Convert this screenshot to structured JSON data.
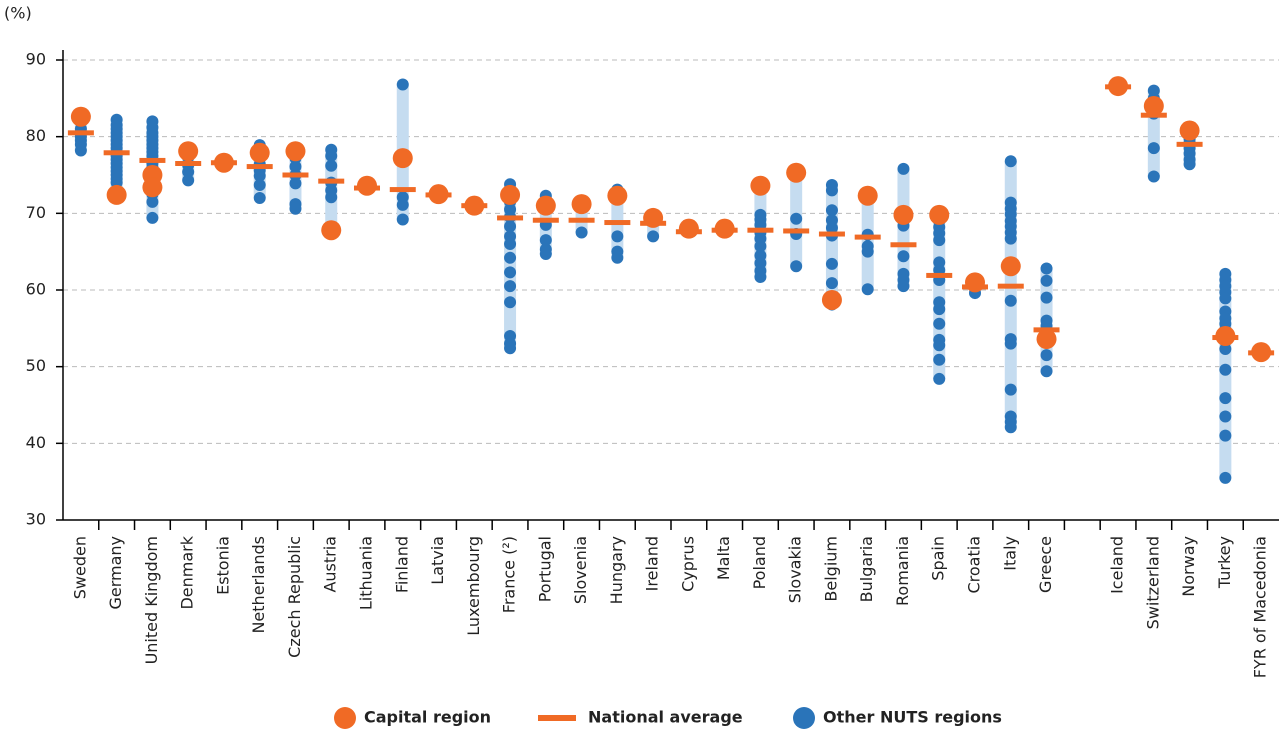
{
  "chart_data": {
    "type": "dot",
    "unit_label": "(%)",
    "categories": [
      "Sweden",
      "Germany",
      "United Kingdom",
      "Denmark",
      "Estonia",
      "Netherlands",
      "Czech Republic",
      "Austria",
      "Lithuania",
      "Finland",
      "Latvia",
      "Luxembourg",
      "France (²)",
      "Portugal",
      "Slovenia",
      "Hungary",
      "Ireland",
      "Cyprus",
      "Malta",
      "Poland",
      "Slovakia",
      "Belgium",
      "Bulgaria",
      "Romania",
      "Spain",
      "Croatia",
      "Italy",
      "Greece",
      null,
      "Iceland",
      "Switzerland",
      "Norway",
      "Turkey",
      "FYR of Macedonia"
    ],
    "series": [
      {
        "name": "Capital region",
        "color": "#f06a25",
        "values": [
          [
            82.6
          ],
          [
            72.4
          ],
          [
            75.0,
            73.4
          ],
          [
            78.1
          ],
          [
            76.6
          ],
          [
            77.9
          ],
          [
            78.1
          ],
          [
            67.8
          ],
          [
            73.6
          ],
          [
            77.2
          ],
          [
            72.5
          ],
          [
            71.0
          ],
          [
            72.4
          ],
          [
            71.0
          ],
          [
            71.2
          ],
          [
            72.3
          ],
          [
            69.4
          ],
          [
            68.0
          ],
          [
            68.0
          ],
          [
            73.6
          ],
          [
            75.3
          ],
          [
            58.7
          ],
          [
            72.3
          ],
          [
            69.8
          ],
          [
            69.8
          ],
          [
            61.0
          ],
          [
            63.1
          ],
          [
            53.6
          ],
          null,
          [
            86.6
          ],
          [
            84.0
          ],
          [
            80.8
          ],
          [
            54.0
          ],
          [
            51.9
          ]
        ]
      },
      {
        "name": "National average",
        "color": "#f06a25",
        "values": [
          80.5,
          77.9,
          76.9,
          76.5,
          76.6,
          76.1,
          75.0,
          74.2,
          73.3,
          73.1,
          72.4,
          71.0,
          69.4,
          69.1,
          69.1,
          68.8,
          68.7,
          67.6,
          67.8,
          67.8,
          67.7,
          67.3,
          66.9,
          65.9,
          61.9,
          60.4,
          60.5,
          54.8,
          null,
          86.5,
          82.8,
          79.0,
          53.8,
          51.8
        ]
      },
      {
        "name": "Other NUTS regions",
        "color": "#2a74b9",
        "values": [
          [
            82.0,
            81.0,
            80.0,
            79.5,
            79.0,
            78.2
          ],
          [
            82.2,
            81.5,
            81.0,
            80.5,
            80.0,
            79.5,
            79.0,
            78.5,
            78.0,
            77.5,
            77.0,
            76.5,
            76.0,
            75.5,
            75.0,
            74.5,
            74.0,
            73.0,
            72.2
          ],
          [
            82.0,
            81.2,
            80.5,
            80.0,
            79.5,
            79.0,
            78.5,
            78.0,
            77.5,
            77.0,
            76.5,
            76.0,
            75.5,
            74.5,
            72.5,
            71.5,
            69.4
          ],
          [
            77.3,
            76.3,
            75.4,
            74.3
          ],
          [],
          [
            78.9,
            78.1,
            77.2,
            76.4,
            75.6,
            74.9,
            73.7,
            72.0
          ],
          [
            77.2,
            76.1,
            75.0,
            73.9,
            71.2,
            70.6
          ],
          [
            78.3,
            77.5,
            76.2,
            74.0,
            73.0,
            72.1
          ],
          [],
          [
            86.8,
            72.1,
            71.1,
            69.2
          ],
          [],
          [],
          [
            73.8,
            73.1,
            72.4,
            71.5,
            70.5,
            69.5,
            68.3,
            67.0,
            66.0,
            64.2,
            62.3,
            60.5,
            58.4,
            54.0,
            53.0,
            52.4
          ],
          [
            72.3,
            71.3,
            68.5,
            66.5,
            65.3,
            64.7
          ],
          [
            67.5
          ],
          [
            73.1,
            72.6,
            67.0,
            65.0,
            64.2
          ],
          [
            67.0
          ],
          [],
          [],
          [
            69.8,
            69.2,
            68.5,
            67.5,
            66.7,
            65.7,
            64.5,
            63.5,
            62.5,
            61.7
          ],
          [
            69.3,
            67.3,
            63.1
          ],
          [
            73.7,
            73.0,
            70.4,
            69.1,
            68.1,
            67.1,
            63.4,
            60.9,
            58.1
          ],
          [
            67.2,
            65.7,
            65.0,
            60.1
          ],
          [
            75.8,
            68.4,
            64.4,
            62.1,
            61.3,
            60.5
          ],
          [
            69.0,
            68.2,
            67.4,
            66.5,
            63.6,
            62.6,
            61.3,
            58.4,
            57.5,
            55.6,
            53.5,
            52.8,
            50.9,
            48.4
          ],
          [
            59.6
          ],
          [
            76.8,
            71.4,
            70.6,
            69.9,
            69.0,
            68.3,
            67.5,
            66.7,
            63.4,
            58.6,
            53.6,
            53.0,
            47.0,
            43.5,
            42.8,
            42.1
          ],
          [
            62.8,
            61.2,
            59.0,
            56.0,
            55.3,
            53.3,
            51.5,
            49.4
          ],
          null,
          [],
          [
            86.0,
            85.0,
            83.0,
            78.5,
            74.8
          ],
          [
            80.3,
            79.7,
            79.2,
            78.5,
            77.8,
            77.0,
            76.4
          ],
          [
            62.1,
            61.3,
            60.5,
            59.7,
            58.9,
            57.2,
            56.3,
            55.6,
            54.8,
            53.3,
            52.3,
            49.6,
            45.9,
            43.5,
            41.0,
            35.5
          ],
          []
        ]
      }
    ],
    "range_color": "#c5dcf0",
    "ylim": [
      30,
      90
    ],
    "yticks": [
      30,
      40,
      50,
      60,
      70,
      80,
      90
    ],
    "grid": true
  }
}
